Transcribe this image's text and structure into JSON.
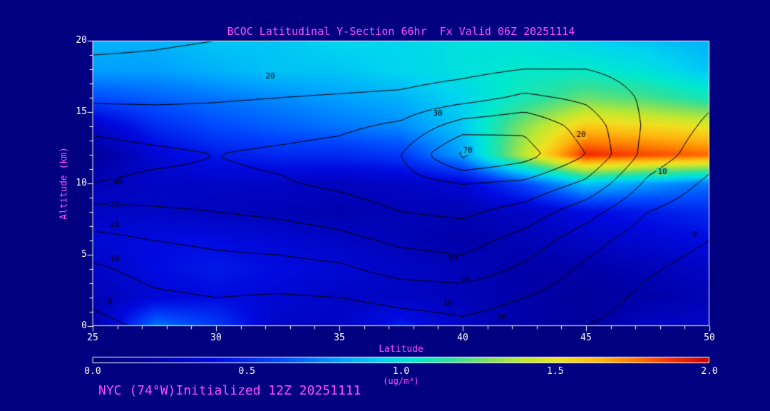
{
  "title": "BCOC Latitudinal Y-Section 66hr  Fx Valid 06Z 20251114",
  "footer": "NYC (74°W)Initialized 12Z 20251111",
  "colors": {
    "background": "#000080",
    "magenta": "#ff4fff",
    "axis_text": "#ffffff",
    "frame": "#ffffff",
    "contour": "#000000"
  },
  "axes": {
    "x_label": "Latitude",
    "y_label": "Altitude (km)",
    "x_ticks": [
      25,
      30,
      35,
      40,
      45,
      50
    ],
    "y_ticks": [
      0,
      5,
      10,
      15,
      20
    ],
    "x_range": [
      25,
      50
    ],
    "y_range": [
      0,
      20
    ]
  },
  "colorbar": {
    "ticks": [
      "0.0",
      "0.5",
      "1.0",
      "1.5",
      "2.0"
    ],
    "min": 0.0,
    "max": 2.0,
    "units": "(ug/m³)"
  },
  "chart_data": {
    "type": "heatmap",
    "title": "BCOC Latitudinal Y-Section 66hr  Fx Valid 06Z 20251114",
    "xlabel": "Latitude",
    "ylabel": "Altitude (km)",
    "x_lat": [
      25,
      27.5,
      30,
      32.5,
      35,
      37.5,
      40,
      42.5,
      45,
      47.5,
      50
    ],
    "y_alt_km": [
      0,
      2,
      4,
      6,
      8,
      10,
      12,
      14,
      16,
      18,
      20
    ],
    "value_min": 0,
    "value_max": 2,
    "values_ugm3_rows_alt_ascending": [
      [
        0.2,
        0.7,
        0.55,
        0.3,
        0.3,
        0.45,
        0.3,
        0.2,
        0.15,
        0.3,
        0.3
      ],
      [
        0.25,
        0.35,
        0.4,
        0.35,
        0.3,
        0.3,
        0.25,
        0.2,
        0.15,
        0.2,
        0.25
      ],
      [
        0.3,
        0.4,
        0.45,
        0.4,
        0.35,
        0.3,
        0.25,
        0.2,
        0.2,
        0.25,
        0.3
      ],
      [
        0.35,
        0.4,
        0.4,
        0.35,
        0.3,
        0.25,
        0.2,
        0.25,
        0.3,
        0.35,
        0.4
      ],
      [
        0.3,
        0.3,
        0.28,
        0.25,
        0.22,
        0.25,
        0.25,
        0.3,
        0.4,
        0.45,
        0.5
      ],
      [
        0.25,
        0.3,
        0.3,
        0.3,
        0.28,
        0.3,
        0.35,
        0.6,
        0.9,
        0.8,
        0.7
      ],
      [
        0.15,
        0.35,
        0.45,
        0.5,
        0.5,
        0.55,
        0.8,
        1.4,
        1.9,
        1.85,
        1.8
      ],
      [
        0.3,
        0.5,
        0.6,
        0.65,
        0.7,
        0.75,
        0.9,
        1.3,
        1.6,
        1.55,
        1.5
      ],
      [
        0.6,
        0.65,
        0.7,
        0.75,
        0.8,
        0.85,
        0.95,
        1.1,
        1.25,
        1.2,
        1.1
      ],
      [
        0.8,
        0.8,
        0.85,
        0.9,
        0.9,
        0.95,
        1.0,
        1.05,
        1.05,
        1.0,
        0.9
      ],
      [
        0.85,
        0.85,
        0.9,
        0.9,
        0.95,
        0.95,
        1.0,
        1.0,
        0.95,
        0.9,
        0.85
      ]
    ],
    "colormap_stops": [
      [
        0.0,
        "#000074"
      ],
      [
        0.1,
        "#0000a8"
      ],
      [
        0.2,
        "#000ae0"
      ],
      [
        0.3,
        "#0048ff"
      ],
      [
        0.4,
        "#00a0ff"
      ],
      [
        0.47,
        "#00d4f0"
      ],
      [
        0.52,
        "#00e8d0"
      ],
      [
        0.58,
        "#30e09a"
      ],
      [
        0.64,
        "#7ce060"
      ],
      [
        0.7,
        "#c0e830"
      ],
      [
        0.76,
        "#f0e020"
      ],
      [
        0.82,
        "#ffb810"
      ],
      [
        0.88,
        "#ff7c00"
      ],
      [
        0.94,
        "#f43000"
      ],
      [
        1.0,
        "#cc0000"
      ]
    ],
    "contour_overlay": {
      "levels": [
        0,
        10,
        20,
        30,
        40,
        50,
        60,
        70
      ],
      "grid_rows_alt_ascending": [
        [
          -3,
          2,
          4,
          3,
          2,
          5,
          8,
          5,
          0,
          -4,
          -6
        ],
        [
          2,
          8,
          10,
          9,
          10,
          13,
          14,
          10,
          4,
          -2,
          -5
        ],
        [
          8,
          14,
          16,
          16,
          18,
          24,
          26,
          18,
          8,
          1,
          -3
        ],
        [
          17,
          20,
          22,
          24,
          27,
          32,
          34,
          26,
          14,
          4,
          0
        ],
        [
          26,
          28,
          30,
          32,
          35,
          40,
          42,
          36,
          24,
          10,
          4
        ],
        [
          40,
          38,
          38,
          39,
          42,
          46,
          50,
          48,
          38,
          18,
          8
        ],
        [
          44,
          42,
          40,
          42,
          44,
          50,
          72,
          64,
          50,
          26,
          14
        ],
        [
          38,
          36,
          35,
          36,
          38,
          42,
          55,
          58,
          46,
          28,
          18
        ],
        [
          28,
          28,
          29,
          30,
          31,
          32,
          36,
          42,
          38,
          28,
          22
        ],
        [
          22,
          22,
          23,
          23,
          24,
          25,
          27,
          30,
          30,
          26,
          22
        ],
        [
          18,
          19,
          20,
          20,
          21,
          21,
          22,
          24,
          24,
          22,
          20
        ]
      ],
      "labels": [
        {
          "text": "20",
          "lat": 32.2,
          "alt": 17.5
        },
        {
          "text": "30",
          "lat": 39.0,
          "alt": 14.9
        },
        {
          "text": "20",
          "lat": 44.8,
          "alt": 13.4
        },
        {
          "text": "10",
          "lat": 48.1,
          "alt": 10.8
        },
        {
          "text": "0",
          "lat": 49.4,
          "alt": 6.4
        },
        {
          "text": "40",
          "lat": 26.0,
          "alt": 10.1
        },
        {
          "text": "30",
          "lat": 25.9,
          "alt": 8.5
        },
        {
          "text": "20",
          "lat": 25.9,
          "alt": 7.1
        },
        {
          "text": "10",
          "lat": 25.9,
          "alt": 4.7
        },
        {
          "text": "0",
          "lat": 25.7,
          "alt": 1.7
        },
        {
          "text": "30",
          "lat": 39.6,
          "alt": 4.8
        },
        {
          "text": "20",
          "lat": 40.1,
          "alt": 3.2
        },
        {
          "text": "10",
          "lat": 39.4,
          "alt": 1.6
        },
        {
          "text": "10",
          "lat": 41.6,
          "alt": 0.6
        },
        {
          "text": "70",
          "lat": 40.2,
          "alt": 12.3
        }
      ]
    }
  }
}
